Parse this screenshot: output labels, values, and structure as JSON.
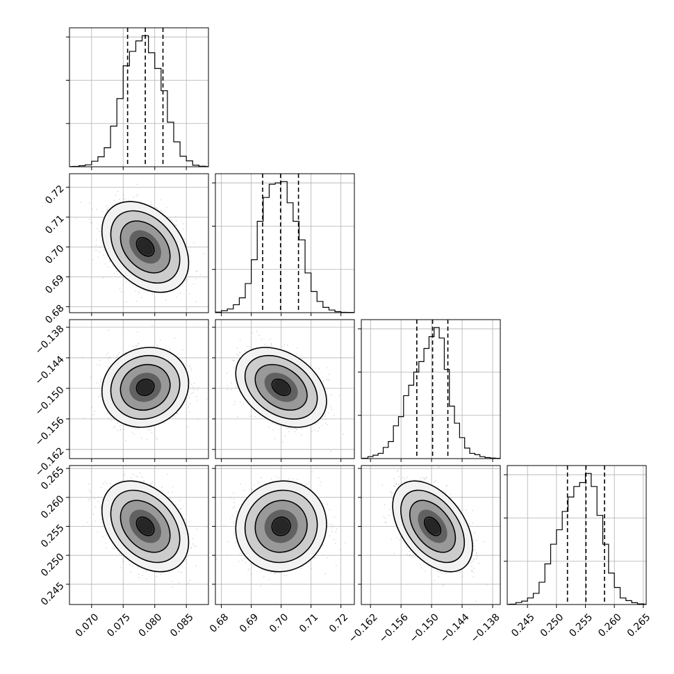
{
  "chart_data": {
    "type": "corner",
    "grid": true,
    "colors": {
      "hist": "#000000",
      "points": "#9a9a9a",
      "density": "#000000"
    },
    "parameters": [
      {
        "id": "p0",
        "mean": 0.0785,
        "sd": 0.0028,
        "range": [
          0.0665,
          0.0885
        ],
        "ticks": [
          0.07,
          0.075,
          0.08,
          0.085
        ],
        "tick_labels": [
          "0.070",
          "0.075",
          "0.080",
          "0.085"
        ],
        "quantiles": [
          0.0757,
          0.0785,
          0.0813
        ],
        "hist_x": [
          0.0675,
          0.0685,
          0.0695,
          0.0705,
          0.0715,
          0.0725,
          0.0735,
          0.0745,
          0.0755,
          0.0765,
          0.0775,
          0.0785,
          0.0795,
          0.0805,
          0.0815,
          0.0825,
          0.0835,
          0.0845,
          0.0855,
          0.0865,
          0.0875
        ],
        "hist_y": [
          0.003,
          0.008,
          0.015,
          0.042,
          0.076,
          0.145,
          0.31,
          0.52,
          0.77,
          0.88,
          0.96,
          1.0,
          0.87,
          0.75,
          0.58,
          0.34,
          0.19,
          0.08,
          0.045,
          0.012,
          0.004
        ]
      },
      {
        "id": "p1",
        "mean": 0.7,
        "sd": 0.0062,
        "range": [
          0.678,
          0.7245
        ],
        "ticks": [
          0.68,
          0.69,
          0.7,
          0.71,
          0.72
        ],
        "tick_labels": [
          "0.68",
          "0.69",
          "0.70",
          "0.71",
          "0.72"
        ],
        "quantiles": [
          0.6938,
          0.6998,
          0.7058
        ],
        "hist_x": [
          0.679,
          0.681,
          0.683,
          0.685,
          0.687,
          0.689,
          0.691,
          0.693,
          0.695,
          0.697,
          0.699,
          0.701,
          0.703,
          0.705,
          0.707,
          0.709,
          0.711,
          0.713,
          0.715,
          0.717,
          0.719,
          0.721,
          0.723
        ],
        "hist_y": [
          0.004,
          0.015,
          0.028,
          0.06,
          0.112,
          0.22,
          0.4,
          0.69,
          0.87,
          0.97,
          0.98,
          0.99,
          0.83,
          0.69,
          0.55,
          0.3,
          0.16,
          0.085,
          0.04,
          0.02,
          0.008,
          0.003,
          0.002
        ]
      },
      {
        "id": "p2",
        "mean": -0.1498,
        "sd": 0.0032,
        "range": [
          -0.1638,
          -0.1365
        ],
        "ticks": [
          -0.162,
          -0.156,
          -0.15,
          -0.144,
          -0.138
        ],
        "tick_labels": [
          "−0.162",
          "−0.156",
          "−0.150",
          "−0.144",
          "−0.138"
        ],
        "quantiles": [
          -0.1529,
          -0.1498,
          -0.1468
        ],
        "hist_x": [
          -0.163,
          -0.162,
          -0.161,
          -0.16,
          -0.159,
          -0.158,
          -0.157,
          -0.156,
          -0.155,
          -0.154,
          -0.153,
          -0.152,
          -0.151,
          -0.15,
          -0.149,
          -0.148,
          -0.147,
          -0.146,
          -0.145,
          -0.144,
          -0.143,
          -0.142,
          -0.141,
          -0.14,
          -0.139,
          -0.138,
          -0.137
        ],
        "hist_y": [
          0.003,
          0.015,
          0.026,
          0.04,
          0.085,
          0.13,
          0.25,
          0.32,
          0.48,
          0.56,
          0.66,
          0.74,
          0.84,
          0.93,
          1.0,
          0.92,
          0.68,
          0.4,
          0.27,
          0.16,
          0.08,
          0.04,
          0.03,
          0.015,
          0.008,
          0.004,
          0.002
        ]
      },
      {
        "id": "p3",
        "mean": 0.255,
        "sd": 0.0032,
        "range": [
          0.2415,
          0.2655
        ],
        "ticks": [
          0.245,
          0.25,
          0.255,
          0.26,
          0.265
        ],
        "tick_labels": [
          "0.245",
          "0.250",
          "0.255",
          "0.260",
          "0.265"
        ],
        "quantiles": [
          0.2519,
          0.2551,
          0.2583
        ],
        "hist_x": [
          0.2425,
          0.2435,
          0.2445,
          0.2455,
          0.2465,
          0.2475,
          0.2485,
          0.2495,
          0.2505,
          0.2515,
          0.2525,
          0.2535,
          0.2545,
          0.2555,
          0.2565,
          0.2575,
          0.2585,
          0.2595,
          0.2605,
          0.2615,
          0.2625,
          0.2635,
          0.2645
        ],
        "hist_y": [
          0.003,
          0.015,
          0.026,
          0.05,
          0.085,
          0.17,
          0.31,
          0.46,
          0.57,
          0.71,
          0.82,
          0.9,
          0.93,
          1.0,
          0.9,
          0.68,
          0.46,
          0.24,
          0.13,
          0.05,
          0.03,
          0.014,
          0.005
        ]
      }
    ],
    "correlations": {
      "1-0": -0.35,
      "2-0": 0.1,
      "2-1": -0.35,
      "3-0": -0.35,
      "3-1": 0.05,
      "3-2": -0.45
    }
  }
}
